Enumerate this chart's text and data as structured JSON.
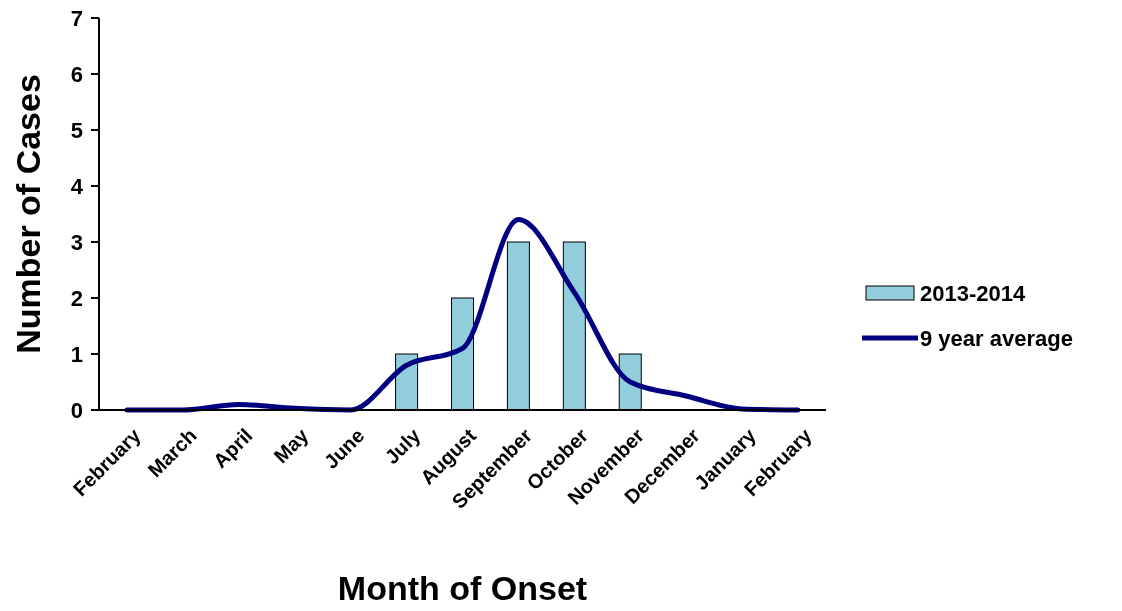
{
  "chart_data": {
    "type": "bar",
    "xlabel": "Month of Onset",
    "ylabel": "Number of Cases",
    "categories": [
      "February",
      "March",
      "April",
      "May",
      "June",
      "July",
      "August",
      "September",
      "October",
      "November",
      "December",
      "January",
      "February"
    ],
    "ylim": [
      0,
      7
    ],
    "yticks": [
      0,
      1,
      2,
      3,
      4,
      5,
      6,
      7
    ],
    "grid": false,
    "legend": "right",
    "marker": "none",
    "series": [
      {
        "name": "2013-2014",
        "color": "#92cddc",
        "values": [
          0,
          0,
          0,
          0,
          0,
          1,
          2,
          3,
          3,
          1,
          0,
          0,
          0
        ]
      },
      {
        "name": "9 year average",
        "type": "line",
        "color": "#000080",
        "line_style": "solid",
        "values": [
          0,
          0,
          0.1,
          0.03,
          0,
          0.8,
          1.1,
          3.4,
          2.1,
          0.5,
          0.25,
          0.02,
          0
        ]
      }
    ]
  }
}
